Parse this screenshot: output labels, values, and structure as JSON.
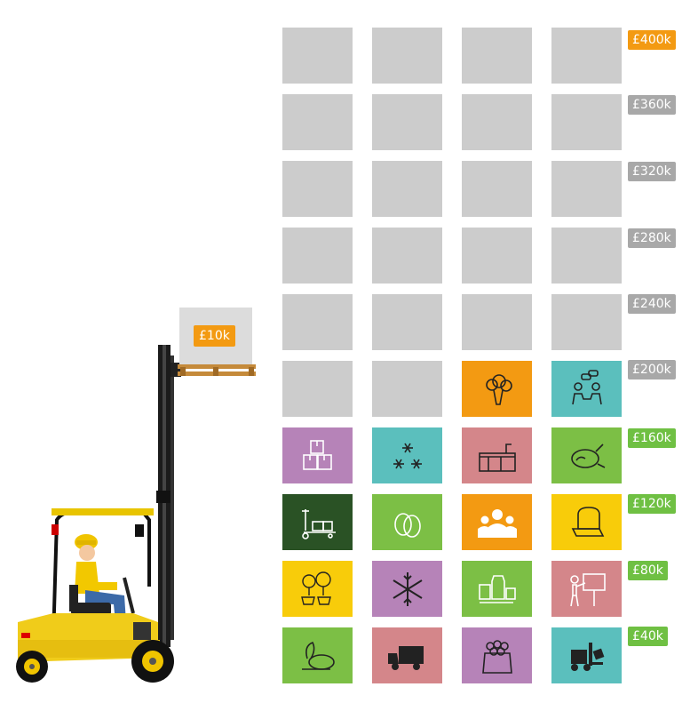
{
  "colors": {
    "empty": "#cccccc",
    "purple": "#b683b8",
    "teal": "#5bbfbd",
    "rose": "#d4868a",
    "green": "#7cbf45",
    "darkgreen": "#2a5225",
    "orange": "#f39a12",
    "yellow": "#f8cc0a",
    "label_active": "#f39a12",
    "label_inactive": "#a8a8a8",
    "label_green": "#6fc043"
  },
  "scale": {
    "labels": [
      "£400k",
      "£360k",
      "£320k",
      "£280k",
      "£240k",
      "£200k",
      "£160k",
      "£120k",
      "£80k",
      "£40k"
    ],
    "active_label": "£400k"
  },
  "tiles": [
    [
      "empty",
      "empty",
      "empty",
      "empty"
    ],
    [
      "empty",
      "empty",
      "empty",
      "empty"
    ],
    [
      "empty",
      "empty",
      "empty",
      "empty"
    ],
    [
      "empty",
      "empty",
      "empty",
      "empty"
    ],
    [
      "empty",
      "empty",
      "empty",
      "empty"
    ],
    [
      "empty",
      "empty",
      "broccoli-icon",
      "meeting-icon"
    ],
    [
      "boxes-icon",
      "snowflakes-icon",
      "kitchen-icon",
      "roast-chicken-icon"
    ],
    [
      "pallet-truck-icon",
      "eggs-icon",
      "people-icon",
      "bread-icon"
    ],
    [
      "fruit-tree-icon",
      "snowflake-icon",
      "dairy-icon",
      "presentation-icon"
    ],
    [
      "vegetables-icon",
      "delivery-truck-icon",
      "potato-sack-icon",
      "forklift-icon"
    ]
  ],
  "tile_colors": [
    [
      "empty",
      "empty",
      "empty",
      "empty"
    ],
    [
      "empty",
      "empty",
      "empty",
      "empty"
    ],
    [
      "empty",
      "empty",
      "empty",
      "empty"
    ],
    [
      "empty",
      "empty",
      "empty",
      "empty"
    ],
    [
      "empty",
      "empty",
      "empty",
      "empty"
    ],
    [
      "empty",
      "empty",
      "orange",
      "teal"
    ],
    [
      "purple",
      "teal",
      "rose",
      "green"
    ],
    [
      "darkgreen",
      "green",
      "orange",
      "yellow"
    ],
    [
      "yellow",
      "purple",
      "green",
      "rose"
    ],
    [
      "green",
      "rose",
      "purple",
      "teal"
    ]
  ],
  "forklift": {
    "crate_label": "£10k"
  }
}
